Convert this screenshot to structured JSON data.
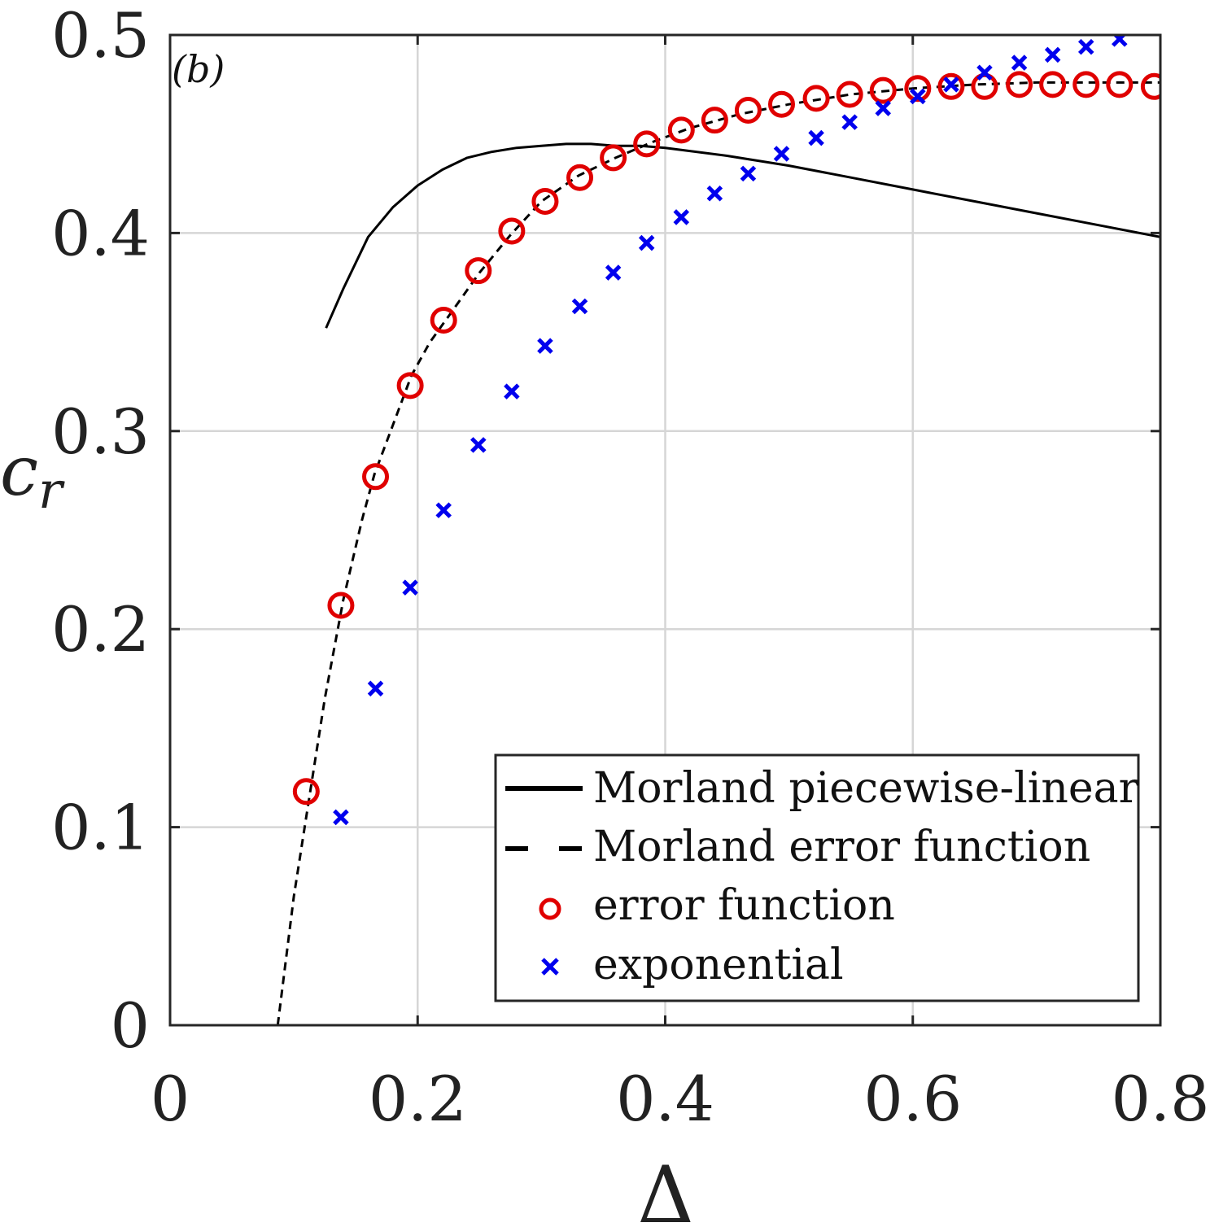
{
  "chart_data": {
    "type": "line",
    "panel_label": "(b)",
    "xlabel": "Δ",
    "ylabel": "c_r",
    "ylabel_main": "c",
    "ylabel_sub": "r",
    "xlim": [
      0,
      0.8
    ],
    "ylim": [
      0,
      0.5
    ],
    "xticks": [
      0,
      0.2,
      0.4,
      0.6,
      0.8
    ],
    "xtick_labels": [
      "0",
      "0.2",
      "0.4",
      "0.6",
      "0.8"
    ],
    "yticks": [
      0,
      0.1,
      0.2,
      0.3,
      0.4,
      0.5
    ],
    "ytick_labels": [
      "0",
      "0.1",
      "0.2",
      "0.3",
      "0.4",
      "0.5"
    ],
    "grid": true,
    "legend_position": "bottom-right",
    "series": [
      {
        "name": "Morland piecewise-linear",
        "style": "solid-line",
        "color": "#000000",
        "x": [
          0.126,
          0.14,
          0.16,
          0.18,
          0.2,
          0.22,
          0.24,
          0.26,
          0.28,
          0.3,
          0.32,
          0.34,
          0.36,
          0.38,
          0.4,
          0.45,
          0.5,
          0.55,
          0.6,
          0.65,
          0.7,
          0.75,
          0.8
        ],
        "y": [
          0.352,
          0.372,
          0.398,
          0.413,
          0.424,
          0.432,
          0.438,
          0.441,
          0.443,
          0.444,
          0.445,
          0.445,
          0.444,
          0.444,
          0.443,
          0.439,
          0.434,
          0.428,
          0.422,
          0.416,
          0.41,
          0.404,
          0.398
        ]
      },
      {
        "name": "Morland error function",
        "style": "dashed-line",
        "color": "#000000",
        "x": [
          0.087,
          0.1,
          0.11,
          0.125,
          0.14,
          0.155,
          0.165,
          0.18,
          0.195,
          0.21,
          0.225,
          0.25,
          0.275,
          0.3,
          0.33,
          0.36,
          0.39,
          0.42,
          0.46,
          0.5,
          0.55,
          0.6,
          0.65,
          0.7,
          0.75,
          0.8
        ],
        "y": [
          0.0,
          0.065,
          0.105,
          0.165,
          0.215,
          0.255,
          0.278,
          0.303,
          0.328,
          0.345,
          0.358,
          0.38,
          0.399,
          0.416,
          0.429,
          0.438,
          0.446,
          0.453,
          0.46,
          0.465,
          0.47,
          0.473,
          0.475,
          0.476,
          0.476,
          0.476
        ]
      },
      {
        "name": "error function",
        "style": "circle-markers",
        "color": "#e00000",
        "x": [
          0.11,
          0.138,
          0.166,
          0.194,
          0.221,
          0.249,
          0.276,
          0.303,
          0.331,
          0.358,
          0.385,
          0.413,
          0.44,
          0.467,
          0.494,
          0.522,
          0.549,
          0.576,
          0.604,
          0.631,
          0.658,
          0.686,
          0.713,
          0.74,
          0.767,
          0.795
        ],
        "y": [
          0.118,
          0.212,
          0.277,
          0.323,
          0.356,
          0.381,
          0.401,
          0.416,
          0.428,
          0.438,
          0.445,
          0.452,
          0.457,
          0.462,
          0.465,
          0.468,
          0.47,
          0.472,
          0.473,
          0.474,
          0.474,
          0.475,
          0.475,
          0.475,
          0.475,
          0.474
        ]
      },
      {
        "name": "exponential",
        "style": "x-markers",
        "color": "#0000ee",
        "x": [
          0.138,
          0.166,
          0.194,
          0.221,
          0.249,
          0.276,
          0.303,
          0.331,
          0.358,
          0.385,
          0.413,
          0.44,
          0.467,
          0.494,
          0.522,
          0.549,
          0.576,
          0.604,
          0.631,
          0.658,
          0.686,
          0.713,
          0.74,
          0.767
        ],
        "y": [
          0.105,
          0.17,
          0.221,
          0.26,
          0.293,
          0.32,
          0.343,
          0.363,
          0.38,
          0.395,
          0.408,
          0.42,
          0.43,
          0.44,
          0.448,
          0.456,
          0.463,
          0.469,
          0.475,
          0.481,
          0.486,
          0.49,
          0.494,
          0.498
        ]
      }
    ]
  }
}
